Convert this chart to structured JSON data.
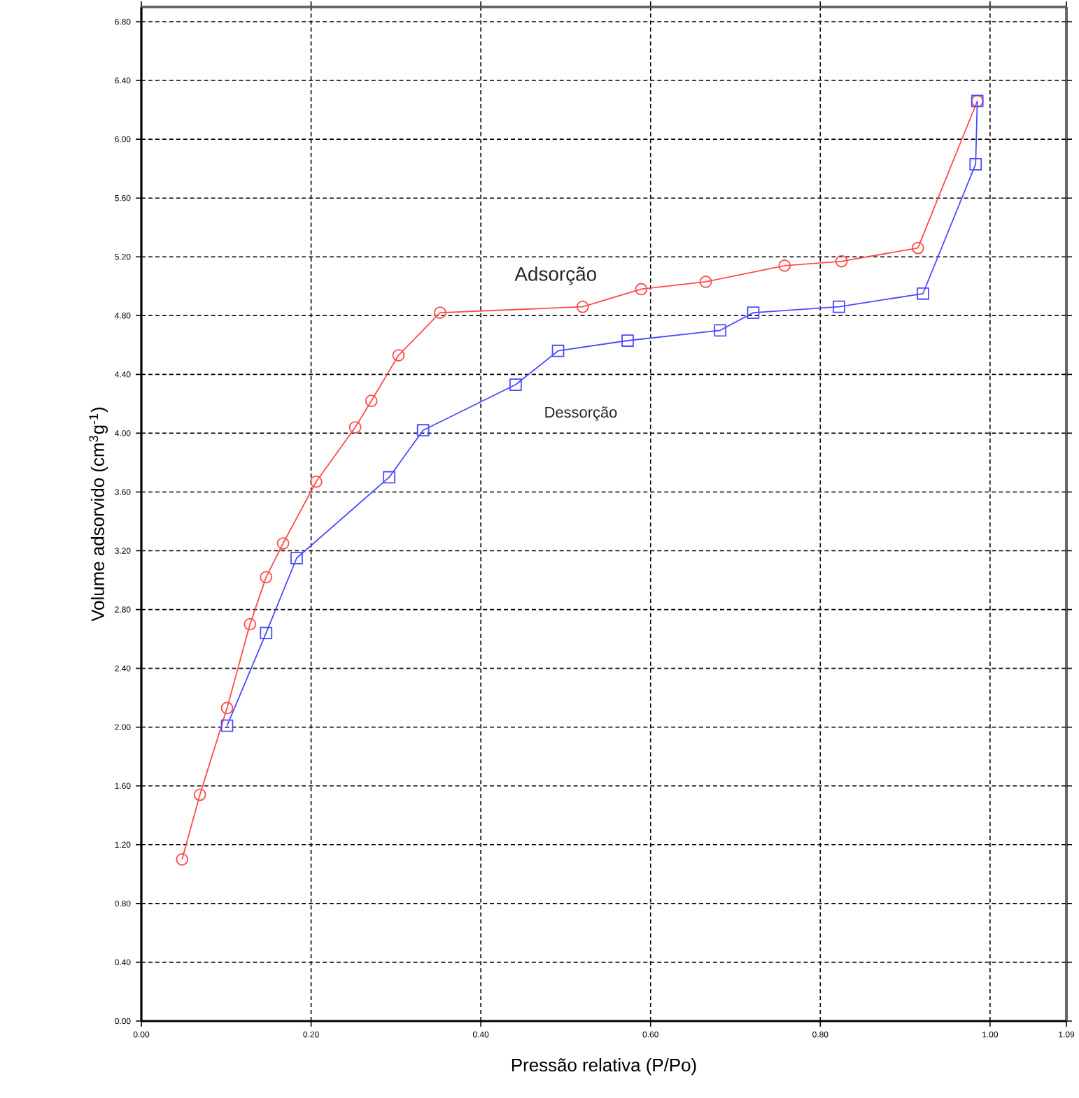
{
  "chart_data": {
    "type": "line",
    "xlabel": "Pressão relativa (P/Po)",
    "ylabel": "Volume adsorvido (cm$^{3}$g$^{-1}$)",
    "xlim": [
      0,
      1.09
    ],
    "ylim": [
      0,
      6.9
    ],
    "xticks": [
      {
        "value": 0,
        "label": "0.00"
      },
      {
        "value": 0.2,
        "label": "0.20"
      },
      {
        "value": 0.4,
        "label": "0.40"
      },
      {
        "value": 0.6,
        "label": "0.60"
      },
      {
        "value": 0.8,
        "label": "0.80"
      },
      {
        "value": 1.0,
        "label": "1.00"
      },
      1.09
    ],
    "yticks": [
      {
        "value": 0,
        "label": "0.00"
      },
      {
        "value": 0.4,
        "label": "0.40"
      },
      {
        "value": 0.8,
        "label": "0.80"
      },
      {
        "value": 1.2,
        "label": "1.20"
      },
      {
        "value": 1.6,
        "label": "1.60"
      },
      {
        "value": 2.0,
        "label": "2.00"
      },
      {
        "value": 2.4,
        "label": "2.40"
      },
      {
        "value": 2.8,
        "label": "2.80"
      },
      {
        "value": 3.2,
        "label": "3.20"
      },
      {
        "value": 3.6,
        "label": "3.60"
      },
      {
        "value": 4.0,
        "label": "4.00"
      },
      {
        "value": 4.4,
        "label": "4.40"
      },
      {
        "value": 4.8,
        "label": "4.80"
      },
      {
        "value": 5.2,
        "label": "5.20"
      },
      {
        "value": 5.6,
        "label": "5.60"
      },
      {
        "value": 6.0,
        "label": "6.00"
      },
      {
        "value": 6.4,
        "label": "6.40"
      },
      {
        "value": 6.8,
        "label": "6.80"
      }
    ],
    "grid": true,
    "legend": false,
    "line_style": "solid",
    "series": [
      {
        "name": "Adsorção",
        "color": "#ff4a4a",
        "marker": "circle",
        "x": [
          0.048,
          0.069,
          0.101,
          0.128,
          0.147,
          0.167,
          0.206,
          0.252,
          0.271,
          0.303,
          0.352,
          0.52,
          0.589,
          0.665,
          0.758,
          0.825,
          0.915,
          0.985
        ],
        "values": [
          1.1,
          1.54,
          2.13,
          2.7,
          3.02,
          3.25,
          3.67,
          4.04,
          4.22,
          4.53,
          4.82,
          4.86,
          4.98,
          5.03,
          5.14,
          5.17,
          5.26,
          6.26
        ]
      },
      {
        "name": "Dessorção",
        "color": "#4a4aff",
        "marker": "square",
        "x": [
          0.101,
          0.147,
          0.183,
          0.292,
          0.332,
          0.441,
          0.491,
          0.573,
          0.682,
          0.721,
          0.822,
          0.921,
          0.983,
          0.985
        ],
        "values": [
          2.01,
          2.64,
          3.15,
          3.7,
          4.02,
          4.33,
          4.56,
          4.63,
          4.7,
          4.82,
          4.86,
          4.95,
          5.83,
          6.26
        ]
      }
    ]
  }
}
